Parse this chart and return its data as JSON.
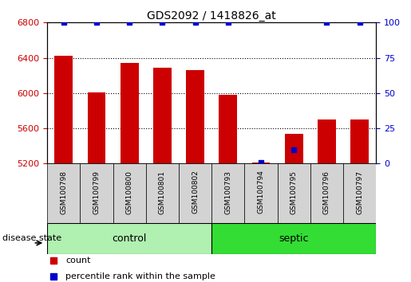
{
  "title": "GDS2092 / 1418826_at",
  "samples": [
    "GSM100798",
    "GSM100799",
    "GSM100800",
    "GSM100801",
    "GSM100802",
    "GSM100793",
    "GSM100794",
    "GSM100795",
    "GSM100796",
    "GSM100797"
  ],
  "counts": [
    6420,
    6010,
    6340,
    6290,
    6260,
    5980,
    5215,
    5540,
    5700,
    5700
  ],
  "percentile_ranks": [
    100,
    100,
    100,
    100,
    100,
    100,
    1,
    10,
    100,
    100
  ],
  "groups": [
    "control",
    "control",
    "control",
    "control",
    "control",
    "septic",
    "septic",
    "septic",
    "septic",
    "septic"
  ],
  "ylim_left": [
    5200,
    6800
  ],
  "ylim_right": [
    0,
    100
  ],
  "yticks_left": [
    5200,
    5600,
    6000,
    6400,
    6800
  ],
  "yticks_right": [
    0,
    25,
    50,
    75,
    100
  ],
  "bar_color": "#cc0000",
  "dot_color": "#0000cc",
  "grid_color": "#000000",
  "control_color": "#b0f0b0",
  "septic_color": "#33dd33",
  "background_color": "#ffffff",
  "label_area_color": "#d3d3d3",
  "disease_state_label": "disease state",
  "legend_count": "count",
  "legend_percentile": "percentile rank within the sample",
  "ylabel_left_color": "#cc0000",
  "ylabel_right_color": "#0000cc"
}
